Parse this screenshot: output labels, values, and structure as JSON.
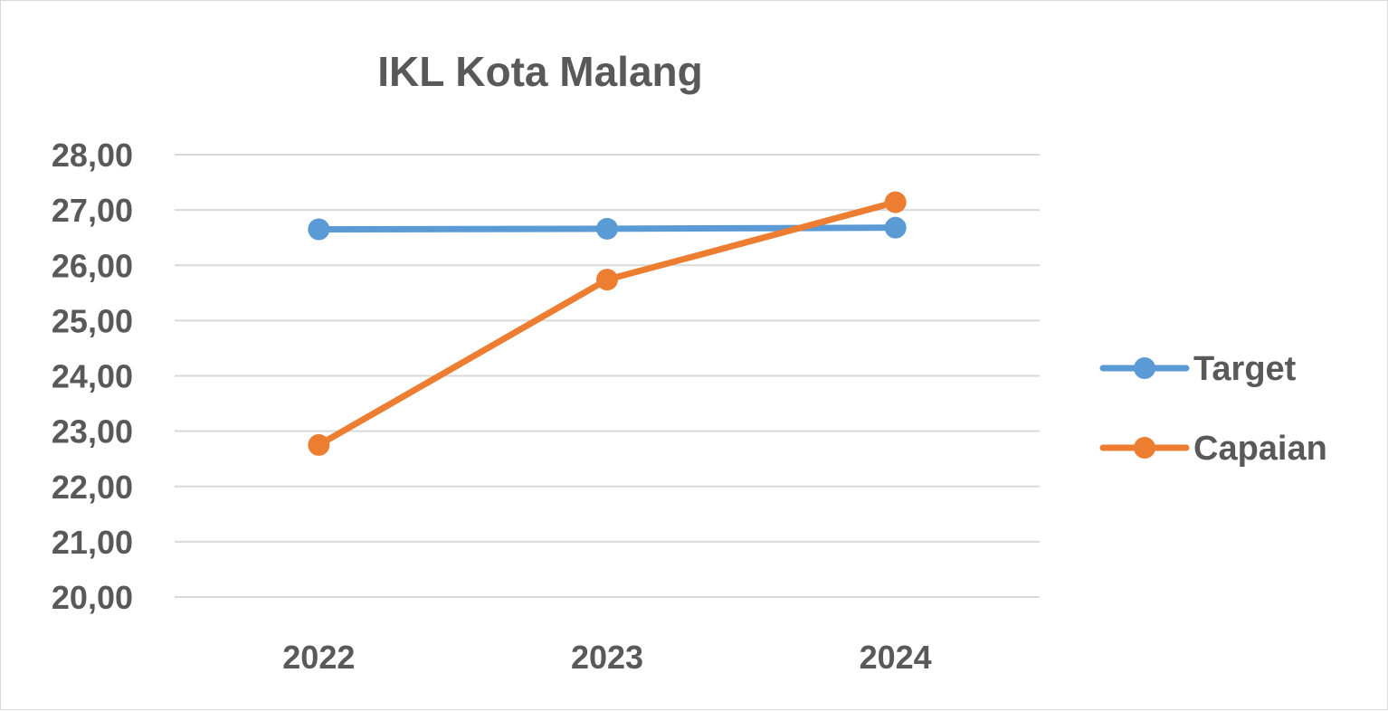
{
  "chart_data": {
    "type": "line",
    "title": "IKL Kota Malang",
    "xlabel": "",
    "ylabel": "",
    "categories": [
      "2022",
      "2023",
      "2024"
    ],
    "ylim": [
      20,
      28
    ],
    "y_ticks": [
      "20,00",
      "21,00",
      "22,00",
      "23,00",
      "24,00",
      "25,00",
      "26,00",
      "27,00",
      "28,00"
    ],
    "grid": true,
    "legend_position": "right",
    "series": [
      {
        "name": "Target",
        "values": [
          26.65,
          26.66,
          26.68
        ],
        "color": "#5B9BD5"
      },
      {
        "name": "Capaian",
        "values": [
          22.75,
          25.74,
          27.14
        ],
        "color": "#ED7D31"
      }
    ]
  }
}
